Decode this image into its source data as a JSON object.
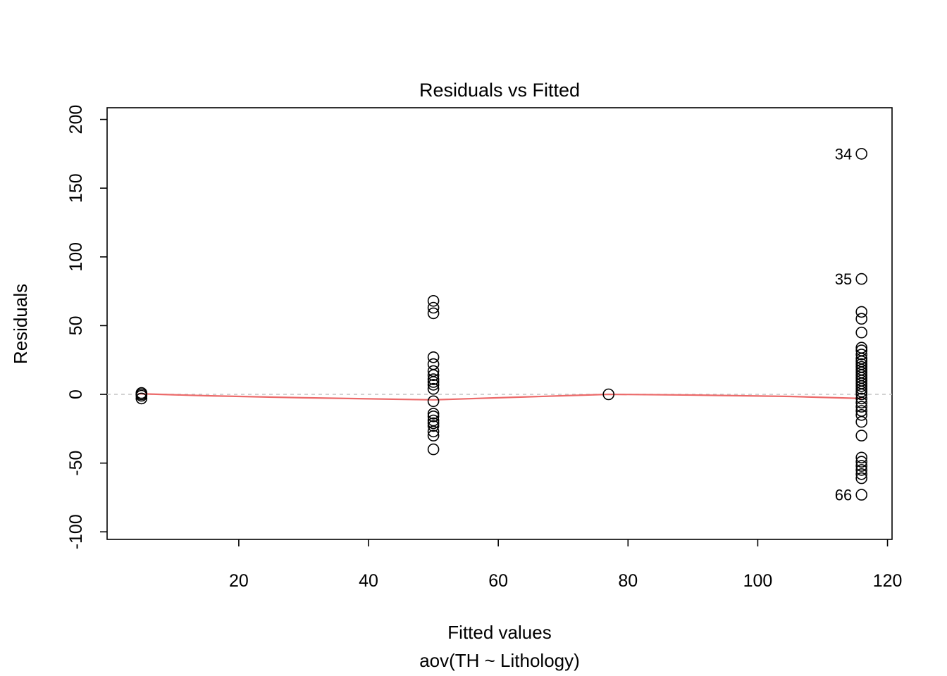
{
  "chart_data": {
    "type": "scatter",
    "title": "Residuals vs Fitted",
    "xlabel": "Fitted values",
    "xlabel2": "aov(TH ~ Lithology)",
    "ylabel": "Residuals",
    "xlim": [
      -0.3,
      120.7
    ],
    "ylim": [
      -105.5,
      208.5
    ],
    "x_ticks": [
      20,
      40,
      60,
      80,
      100,
      120
    ],
    "y_ticks": [
      -100,
      -50,
      0,
      50,
      100,
      150,
      200
    ],
    "grid": false,
    "zero_line": {
      "y": 0,
      "color": "#c4c4c4"
    },
    "smooth_line": {
      "color": "#ec6a6a",
      "points": [
        [
          4.5,
          0.5
        ],
        [
          15,
          -1
        ],
        [
          30,
          -2.5
        ],
        [
          50,
          -4
        ],
        [
          60,
          -2.5
        ],
        [
          70,
          -1
        ],
        [
          77,
          0
        ],
        [
          90,
          -0.5
        ],
        [
          105,
          -1.5
        ],
        [
          116,
          -3
        ]
      ]
    },
    "point_style": {
      "radius": 7.5,
      "stroke": "#000000",
      "stroke_width": 1.6
    },
    "points": [
      [
        5,
        1
      ],
      [
        5,
        0
      ],
      [
        5,
        -1
      ],
      [
        5,
        -3
      ],
      [
        50,
        68
      ],
      [
        50,
        63
      ],
      [
        50,
        59
      ],
      [
        50,
        27
      ],
      [
        50,
        22
      ],
      [
        50,
        17
      ],
      [
        50,
        14
      ],
      [
        50,
        11
      ],
      [
        50,
        9
      ],
      [
        50,
        7
      ],
      [
        50,
        4
      ],
      [
        50,
        -5
      ],
      [
        50,
        -14
      ],
      [
        50,
        -16
      ],
      [
        50,
        -19
      ],
      [
        50,
        -21
      ],
      [
        50,
        -23
      ],
      [
        50,
        -27
      ],
      [
        50,
        -30
      ],
      [
        50,
        -40
      ],
      [
        77,
        0
      ],
      [
        116,
        60
      ],
      [
        116,
        55
      ],
      [
        116,
        45
      ],
      [
        116,
        34
      ],
      [
        116,
        32
      ],
      [
        116,
        29
      ],
      [
        116,
        26
      ],
      [
        116,
        24
      ],
      [
        116,
        22
      ],
      [
        116,
        20
      ],
      [
        116,
        18
      ],
      [
        116,
        16
      ],
      [
        116,
        14
      ],
      [
        116,
        12
      ],
      [
        116,
        10
      ],
      [
        116,
        8
      ],
      [
        116,
        6
      ],
      [
        116,
        4
      ],
      [
        116,
        2
      ],
      [
        116,
        0
      ],
      [
        116,
        -3
      ],
      [
        116,
        -6
      ],
      [
        116,
        -9
      ],
      [
        116,
        -12
      ],
      [
        116,
        -15
      ],
      [
        116,
        -20
      ],
      [
        116,
        -30
      ],
      [
        116,
        -46
      ],
      [
        116,
        -49
      ],
      [
        116,
        -52
      ],
      [
        116,
        -55
      ],
      [
        116,
        -58
      ],
      [
        116,
        -61
      ]
    ],
    "labeled_points": [
      {
        "label": "34",
        "x": 116,
        "y": 175
      },
      {
        "label": "35",
        "x": 116,
        "y": 84
      },
      {
        "label": "66",
        "x": 116,
        "y": -73
      }
    ]
  }
}
